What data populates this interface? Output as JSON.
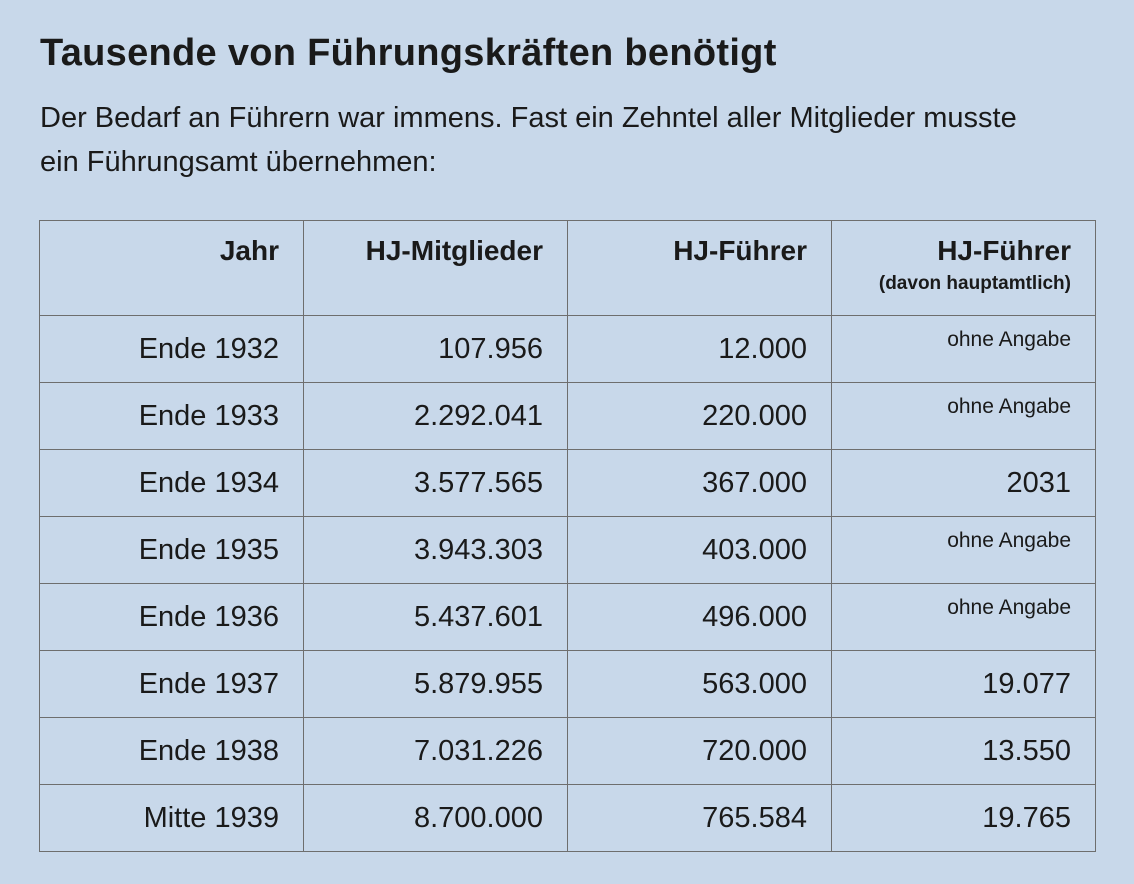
{
  "title": "Tausende von Führungskräften benötigt",
  "subtitle": "Der Bedarf an Führern war immens. Fast ein Zehntel aller Mitglieder musste ein Führungsamt übernehmen:",
  "chart_data": {
    "type": "table",
    "columns": [
      {
        "label": "Jahr",
        "sub": ""
      },
      {
        "label": "HJ-Mitglieder",
        "sub": ""
      },
      {
        "label": "HJ-Führer",
        "sub": ""
      },
      {
        "label": "HJ-Führer",
        "sub": "(davon hauptamtlich)"
      }
    ],
    "rows": [
      [
        "Ende 1932",
        "107.956",
        "12.000",
        "ohne Angabe"
      ],
      [
        "Ende 1933",
        "2.292.041",
        "220.000",
        "ohne Angabe"
      ],
      [
        "Ende 1934",
        "3.577.565",
        "367.000",
        "2031"
      ],
      [
        "Ende 1935",
        "3.943.303",
        "403.000",
        "ohne Angabe"
      ],
      [
        "Ende 1936",
        "5.437.601",
        "496.000",
        "ohne Angabe"
      ],
      [
        "Ende 1937",
        "5.879.955",
        "563.000",
        "19.077"
      ],
      [
        "Ende 1938",
        "7.031.226",
        "720.000",
        "13.550"
      ],
      [
        "Mitte 1939",
        "8.700.000",
        "765.584",
        "19.765"
      ]
    ]
  }
}
